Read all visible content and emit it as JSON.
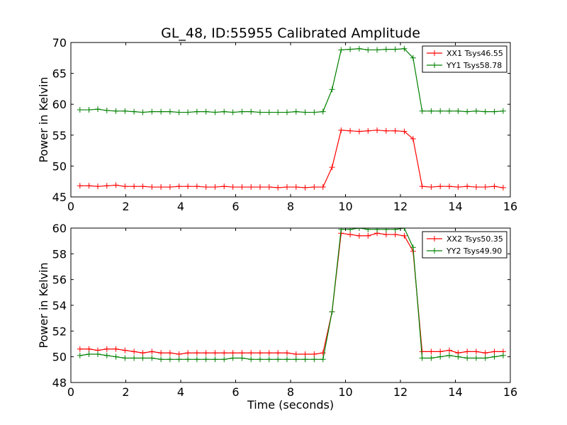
{
  "chart_data": [
    {
      "type": "line",
      "title": "GL_48, ID:55955 Calibrated Amplitude",
      "xlabel": "",
      "ylabel": "Power in Kelvin",
      "xlim": [
        0,
        16
      ],
      "ylim": [
        45,
        70
      ],
      "xticks": [
        0,
        2,
        4,
        6,
        8,
        10,
        12,
        14,
        16
      ],
      "yticks": [
        45,
        50,
        55,
        60,
        65,
        70
      ],
      "grid": false,
      "legend": "top-right",
      "x": [
        0.33,
        0.66,
        0.98,
        1.31,
        1.64,
        1.97,
        2.3,
        2.62,
        2.95,
        3.28,
        3.61,
        3.94,
        4.26,
        4.59,
        4.92,
        5.25,
        5.58,
        5.9,
        6.23,
        6.56,
        6.89,
        7.22,
        7.54,
        7.87,
        8.2,
        8.53,
        8.86,
        9.18,
        9.51,
        9.84,
        10.17,
        10.5,
        10.82,
        11.15,
        11.48,
        11.81,
        12.14,
        12.46,
        12.79,
        13.12,
        13.45,
        13.78,
        14.1,
        14.43,
        14.76,
        15.09,
        15.42,
        15.74
      ],
      "series": [
        {
          "name": "XX1 Tsys46.55",
          "color": "#ff0000",
          "values": [
            46.8,
            46.8,
            46.7,
            46.8,
            46.9,
            46.7,
            46.7,
            46.7,
            46.6,
            46.6,
            46.6,
            46.7,
            46.7,
            46.7,
            46.6,
            46.6,
            46.7,
            46.6,
            46.6,
            46.6,
            46.6,
            46.6,
            46.5,
            46.6,
            46.6,
            46.5,
            46.6,
            46.6,
            49.8,
            55.8,
            55.7,
            55.6,
            55.7,
            55.8,
            55.7,
            55.7,
            55.6,
            54.4,
            46.7,
            46.6,
            46.7,
            46.7,
            46.6,
            46.7,
            46.6,
            46.6,
            46.7,
            46.5
          ]
        },
        {
          "name": "YY1 Tsys58.78",
          "color": "#008000",
          "values": [
            59.1,
            59.1,
            59.2,
            59.0,
            58.9,
            58.9,
            58.8,
            58.7,
            58.8,
            58.8,
            58.8,
            58.7,
            58.7,
            58.8,
            58.8,
            58.7,
            58.8,
            58.7,
            58.8,
            58.8,
            58.7,
            58.7,
            58.7,
            58.7,
            58.8,
            58.7,
            58.7,
            58.8,
            62.4,
            68.8,
            68.9,
            69.0,
            68.8,
            68.8,
            68.9,
            68.9,
            69.0,
            67.5,
            58.9,
            58.9,
            58.9,
            58.9,
            58.9,
            58.8,
            58.9,
            58.8,
            58.8,
            58.9
          ]
        }
      ]
    },
    {
      "type": "line",
      "title": "",
      "xlabel": "Time (seconds)",
      "ylabel": "Power in Kelvin",
      "xlim": [
        0,
        16
      ],
      "ylim": [
        48,
        60
      ],
      "xticks": [
        0,
        2,
        4,
        6,
        8,
        10,
        12,
        14,
        16
      ],
      "yticks": [
        48,
        50,
        52,
        54,
        56,
        58,
        60
      ],
      "grid": false,
      "legend": "top-right",
      "x": [
        0.33,
        0.66,
        0.98,
        1.31,
        1.64,
        1.97,
        2.3,
        2.62,
        2.95,
        3.28,
        3.61,
        3.94,
        4.26,
        4.59,
        4.92,
        5.25,
        5.58,
        5.9,
        6.23,
        6.56,
        6.89,
        7.22,
        7.54,
        7.87,
        8.2,
        8.53,
        8.86,
        9.18,
        9.51,
        9.84,
        10.17,
        10.5,
        10.82,
        11.15,
        11.48,
        11.81,
        12.14,
        12.46,
        12.79,
        13.12,
        13.45,
        13.78,
        14.1,
        14.43,
        14.76,
        15.09,
        15.42,
        15.74
      ],
      "series": [
        {
          "name": "XX2 Tsys50.35",
          "color": "#ff0000",
          "values": [
            50.6,
            50.6,
            50.5,
            50.6,
            50.6,
            50.5,
            50.4,
            50.3,
            50.4,
            50.3,
            50.3,
            50.2,
            50.3,
            50.3,
            50.3,
            50.3,
            50.3,
            50.3,
            50.3,
            50.3,
            50.3,
            50.3,
            50.3,
            50.3,
            50.2,
            50.2,
            50.2,
            50.3,
            53.5,
            59.6,
            59.5,
            59.4,
            59.4,
            59.6,
            59.5,
            59.5,
            59.4,
            58.2,
            50.4,
            50.4,
            50.4,
            50.5,
            50.3,
            50.4,
            50.4,
            50.3,
            50.4,
            50.4
          ]
        },
        {
          "name": "YY2 Tsys49.90",
          "color": "#008000",
          "values": [
            50.1,
            50.2,
            50.2,
            50.1,
            50.0,
            49.9,
            49.9,
            49.9,
            49.9,
            49.8,
            49.8,
            49.8,
            49.8,
            49.8,
            49.8,
            49.8,
            49.8,
            49.9,
            49.9,
            49.8,
            49.8,
            49.8,
            49.8,
            49.8,
            49.8,
            49.8,
            49.8,
            49.8,
            53.5,
            59.9,
            59.9,
            60.0,
            59.9,
            59.9,
            59.9,
            59.9,
            60.0,
            58.5,
            49.9,
            49.9,
            50.0,
            50.1,
            50.0,
            49.9,
            49.9,
            49.9,
            50.0,
            50.1
          ]
        }
      ]
    }
  ]
}
